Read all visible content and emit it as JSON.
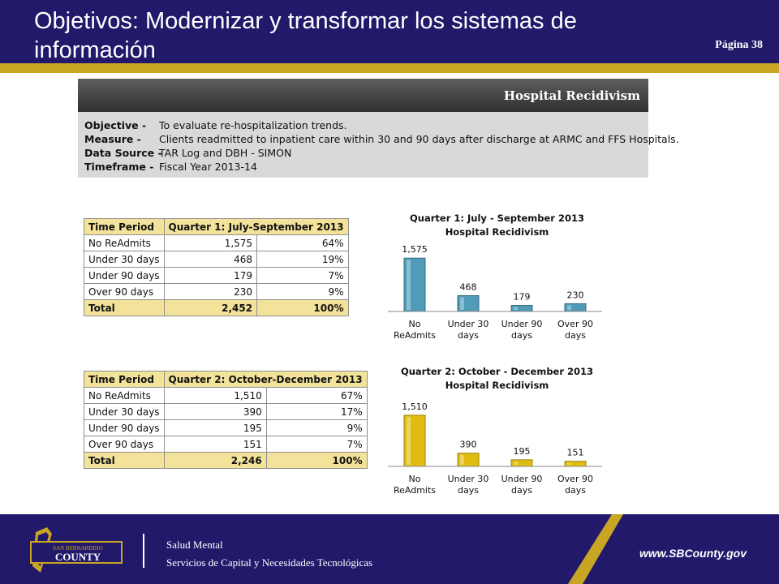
{
  "header": {
    "title": "Objetivos: Modernizar y transformar los sistemas de información",
    "page": "Página 38"
  },
  "info": {
    "heading": "Hospital Recidivism",
    "rows": [
      {
        "key": "Objective -",
        "value": "To evaluate re-hospitalization trends."
      },
      {
        "key": "Measure -",
        "value": "Clients readmitted to inpatient care within 30 and 90 days after discharge at ARMC and FFS Hospitals."
      },
      {
        "key": "Data Source -",
        "value": "TAR Log and DBH - SIMON"
      },
      {
        "key": "Timeframe -",
        "value": "Fiscal Year 2013-14"
      }
    ]
  },
  "tables": [
    {
      "headers": [
        "Time Period",
        "Quarter 1: July-September 2013"
      ],
      "rows": [
        [
          "No ReAdmits",
          "1,575",
          "64%"
        ],
        [
          "Under 30 days",
          "468",
          "19%"
        ],
        [
          "Under 90 days",
          "179",
          "7%"
        ],
        [
          "Over 90 days",
          "230",
          "9%"
        ]
      ],
      "total": [
        "Total",
        "2,452",
        "100%"
      ]
    },
    {
      "headers": [
        "Time Period",
        "Quarter 2: October-December 2013"
      ],
      "rows": [
        [
          "No ReAdmits",
          "1,510",
          "67%"
        ],
        [
          "Under 30 days",
          "390",
          "17%"
        ],
        [
          "Under 90 days",
          "195",
          "9%"
        ],
        [
          "Over 90 days",
          "151",
          "7%"
        ]
      ],
      "total": [
        "Total",
        "2,246",
        "100%"
      ]
    }
  ],
  "chart_data": [
    {
      "type": "bar",
      "title": "Quarter 1:  July - September 2013",
      "subtitle": "Hospital Recidivism",
      "categories": [
        [
          "No",
          "ReAdmits"
        ],
        [
          "Under 30",
          "days"
        ],
        [
          "Under 90",
          "days"
        ],
        [
          "Over 90",
          "days"
        ]
      ],
      "values": [
        1575,
        468,
        179,
        230
      ],
      "value_labels": [
        "1,575",
        "468",
        "179",
        "230"
      ],
      "color": "#4f9bb8",
      "ylim": [
        0,
        1700
      ],
      "grid": false,
      "legend": "none"
    },
    {
      "type": "bar",
      "title": "Quarter 2: October - December 2013",
      "subtitle": "Hospital Recidivism",
      "categories": [
        [
          "No",
          "ReAdmits"
        ],
        [
          "Under 30",
          "days"
        ],
        [
          "Under 90",
          "days"
        ],
        [
          "Over 90",
          "days"
        ]
      ],
      "values": [
        1510,
        390,
        195,
        151
      ],
      "value_labels": [
        "1,510",
        "390",
        "195",
        "151"
      ],
      "color": "#e0bc10",
      "ylim": [
        0,
        1700
      ],
      "grid": false,
      "legend": "none"
    }
  ],
  "footer": {
    "logo_line1": "SAN BERNARDINO",
    "logo_line2": "COUNTY",
    "dept_line1": "Salud Mental",
    "dept_line2": "Servicios de Capital y Necesidades Tecnológicas",
    "website": "www.SBCounty.gov"
  }
}
